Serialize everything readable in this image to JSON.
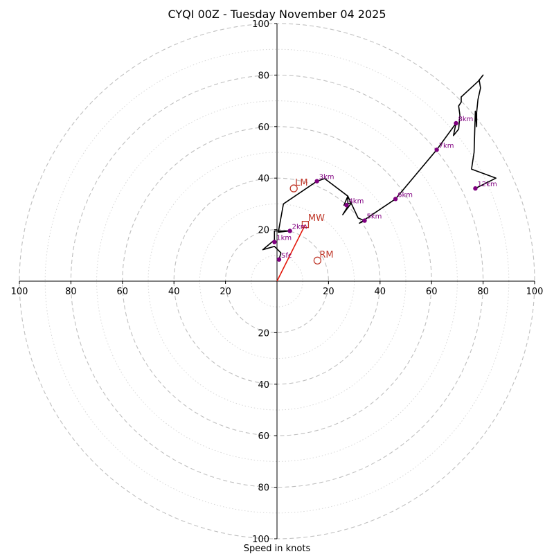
{
  "chart_data": {
    "type": "hodograph",
    "title": "CYQI 00Z - Tuesday November 04 2025",
    "xlabel": "Speed in knots",
    "unit": "knots",
    "range": [
      -100,
      100
    ],
    "ring_major": [
      20,
      40,
      60,
      80,
      100
    ],
    "ring_minor": [
      10,
      30,
      50,
      70,
      90
    ],
    "x_tick_labels": [
      {
        "value": -100,
        "label": "100"
      },
      {
        "value": -80,
        "label": "80"
      },
      {
        "value": -60,
        "label": "60"
      },
      {
        "value": -40,
        "label": "40"
      },
      {
        "value": -20,
        "label": "20"
      },
      {
        "value": 20,
        "label": "20"
      },
      {
        "value": 40,
        "label": "40"
      },
      {
        "value": 60,
        "label": "60"
      },
      {
        "value": 80,
        "label": "80"
      },
      {
        "value": 100,
        "label": "100"
      }
    ],
    "y_tick_labels": [
      {
        "value": 100,
        "label": "100"
      },
      {
        "value": 80,
        "label": "80"
      },
      {
        "value": 60,
        "label": "60"
      },
      {
        "value": 40,
        "label": "40"
      },
      {
        "value": 20,
        "label": "20"
      },
      {
        "value": -20,
        "label": "20"
      },
      {
        "value": -40,
        "label": "40"
      },
      {
        "value": -60,
        "label": "60"
      },
      {
        "value": -80,
        "label": "80"
      },
      {
        "value": -100,
        "label": "100"
      }
    ],
    "trace": [
      [
        0.8,
        8.4
      ],
      [
        1.5,
        11
      ],
      [
        -1,
        13.5
      ],
      [
        -5.5,
        12.2
      ],
      [
        -1,
        16
      ],
      [
        -1,
        19.5
      ],
      [
        5,
        19.5
      ],
      [
        0.5,
        19
      ],
      [
        2.5,
        30
      ],
      [
        15.5,
        38.8
      ],
      [
        18.5,
        39.8
      ],
      [
        27.5,
        33
      ],
      [
        26,
        29.5
      ],
      [
        29,
        30.5
      ],
      [
        25.5,
        25.8
      ],
      [
        27.5,
        29
      ],
      [
        27.5,
        33
      ],
      [
        31.5,
        24.5
      ],
      [
        34,
        23.5
      ],
      [
        32,
        22.5
      ],
      [
        33.5,
        23.5
      ],
      [
        46,
        31.9
      ],
      [
        62,
        51
      ],
      [
        69.5,
        61.3
      ],
      [
        68.5,
        56.5
      ],
      [
        70.5,
        59
      ],
      [
        71,
        64.5
      ],
      [
        70.5,
        68
      ],
      [
        71.5,
        69.5
      ],
      [
        71.5,
        71.5
      ],
      [
        78,
        77.5
      ],
      [
        80,
        80
      ],
      [
        78.5,
        78
      ],
      [
        79,
        75
      ],
      [
        78,
        70.5
      ],
      [
        77.5,
        65.5
      ],
      [
        77.5,
        60
      ],
      [
        77,
        66
      ],
      [
        76.5,
        50
      ],
      [
        75.5,
        43.5
      ],
      [
        85,
        40
      ],
      [
        77,
        36
      ]
    ],
    "height_markers": [
      {
        "label": "Sfc",
        "u": 0.8,
        "v": 8.4
      },
      {
        "label": "1km",
        "u": -1,
        "v": 15.2
      },
      {
        "label": "2km",
        "u": 5,
        "v": 19.5
      },
      {
        "label": "3km",
        "u": 15.5,
        "v": 38.8
      },
      {
        "label": "4km",
        "u": 27,
        "v": 29.5
      },
      {
        "label": "5km",
        "u": 34,
        "v": 23.5
      },
      {
        "label": "6km",
        "u": 46,
        "v": 31.9
      },
      {
        "label": "7km",
        "u": 62,
        "v": 51
      },
      {
        "label": "8km",
        "u": 69.5,
        "v": 61.3
      },
      {
        "label": "12km",
        "u": 77,
        "v": 36
      }
    ],
    "storm_motion": {
      "LM": {
        "label": "LM",
        "u": 6.5,
        "v": 36
      },
      "RM": {
        "label": "RM",
        "u": 15.7,
        "v": 8
      },
      "MW": {
        "label": "MW",
        "u": 11,
        "v": 22
      }
    },
    "colors": {
      "trace": "#000000",
      "marker": "#800080",
      "storm": "#c0392b",
      "vector": "#e3170a",
      "grid": "#bfbfbf",
      "grid_minor": "#d6d6d6"
    }
  }
}
